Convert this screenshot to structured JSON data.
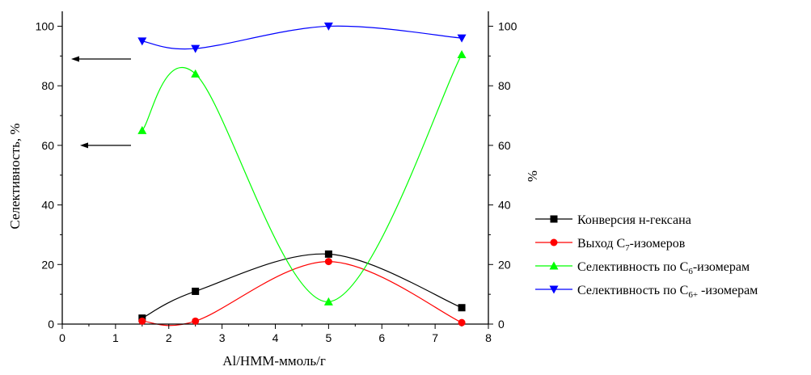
{
  "chart_data": {
    "type": "line",
    "xlabel": "Al/HMM-ммоль/г",
    "ylabel": "Селективность, %",
    "y2label": "%",
    "xlim": [
      0,
      8
    ],
    "ylim": [
      0,
      105
    ],
    "y2lim": [
      0,
      105
    ],
    "xticks": [
      "0",
      "1",
      "2",
      "3",
      "4",
      "5",
      "6",
      "7",
      "8"
    ],
    "yticks": [
      "0",
      "20",
      "40",
      "60",
      "80",
      "100"
    ],
    "y2ticks": [
      "0",
      "20",
      "40",
      "60",
      "80",
      "100"
    ],
    "grid": false,
    "legend_position": "right",
    "x": [
      1.5,
      2.5,
      5,
      7.5
    ],
    "series": [
      {
        "name": "Конверсия н-гексана",
        "name_main": "Конверсия н-гексана",
        "sub": "",
        "name_tail": "",
        "color": "#000000",
        "marker": "square",
        "values": [
          2,
          11,
          23.5,
          5.5
        ]
      },
      {
        "name": "Выход C7-изомеров",
        "name_main": "Выход C",
        "sub": "7",
        "name_tail": "-изомеров",
        "color": "#ff0000",
        "marker": "circle",
        "values": [
          1,
          1,
          21,
          0.5
        ]
      },
      {
        "name": "Селективность по C6-изомерам",
        "name_main": "Селективность по C",
        "sub": "6",
        "name_tail": "-изомерам",
        "color": "#00ff00",
        "marker": "triangle-up",
        "values": [
          65,
          84,
          7.5,
          90.5
        ]
      },
      {
        "name": "Селективность по C6+ -изомерам",
        "name_main": "Селективность по C",
        "sub": "6+",
        "name_tail": " -изомерам",
        "color": "#0000ff",
        "marker": "triangle-down",
        "values": [
          95,
          92.5,
          100,
          96
        ]
      }
    ],
    "annotations": [
      {
        "type": "arrow",
        "direction": "left",
        "y": 89,
        "series": "Селективность по C6+ -изомерам"
      },
      {
        "type": "arrow",
        "direction": "left",
        "y": 60,
        "series": "Селективность по C6-изомерам"
      }
    ]
  }
}
